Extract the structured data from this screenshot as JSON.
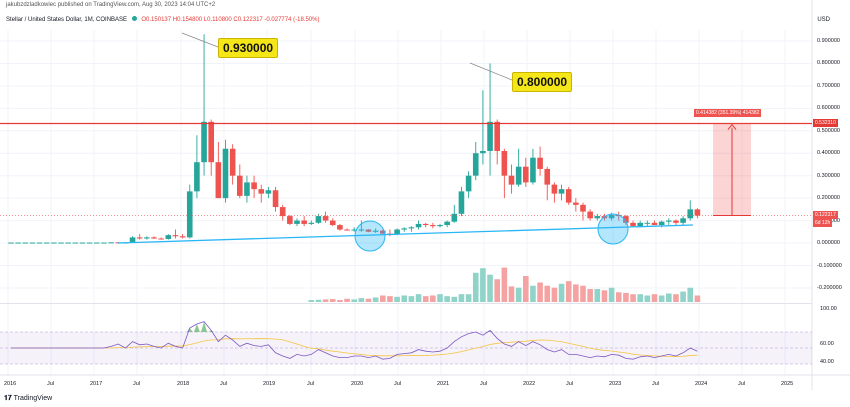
{
  "header": {
    "published": "jakubzdzladkowiec published on TradingView.com, Aug 30, 2023 14:04 UTC+2",
    "symbol": "Stellar / United States Dollar, 1M, COINBASE",
    "ohlc": {
      "o": "O0.150137",
      "h": "H0.154800",
      "l": "L0.110800",
      "c": "C0.122317",
      "chg": "-0.027774 (-18.50%)"
    },
    "currency": "USD"
  },
  "price_axis": [
    "0.900000",
    "0.800000",
    "0.700000",
    "0.600000",
    "0.500000",
    "0.400000",
    "0.300000",
    "0.200000",
    "0.100000",
    "0.000000",
    "-0.100000",
    "-0.200000"
  ],
  "rsi_axis": [
    "100.00",
    "60.00",
    "40.00"
  ],
  "x_axis": [
    "2016",
    "Jul",
    "2017",
    "Jul",
    "2018",
    "Jul",
    "2019",
    "Jul",
    "2020",
    "Jul",
    "2021",
    "Jul",
    "2022",
    "Jul",
    "2023",
    "Jul",
    "2024",
    "Jul",
    "2025"
  ],
  "callouts": {
    "high1": "0.930000",
    "high2": "0.800000"
  },
  "badges": {
    "measure": "0.414382 (351.39%) 414382",
    "resistance": "0.532310",
    "last_price": "0.122317",
    "countdown": "6d 12h"
  },
  "brand": "TradingView",
  "colors": {
    "up": "#26a69a",
    "down": "#ef5350",
    "resistance": "#e53935",
    "trendline": "#29b6f6",
    "callout_bg": "#f5e617",
    "rsi": "#7e57c2"
  },
  "chart_data": {
    "type": "candlestick",
    "resistance_level": 0.53231,
    "annotations": [
      "0.930000",
      "0.800000"
    ],
    "ylim": [
      -0.25,
      0.95
    ],
    "candles": [
      {
        "o": 0.002,
        "h": 0.002,
        "l": 0.002,
        "c": 0.002
      },
      {
        "o": 0.002,
        "h": 0.002,
        "l": 0.002,
        "c": 0.002
      },
      {
        "o": 0.002,
        "h": 0.002,
        "l": 0.002,
        "c": 0.002
      },
      {
        "o": 0.002,
        "h": 0.002,
        "l": 0.002,
        "c": 0.002
      },
      {
        "o": 0.002,
        "h": 0.002,
        "l": 0.002,
        "c": 0.002
      },
      {
        "o": 0.002,
        "h": 0.002,
        "l": 0.002,
        "c": 0.002
      },
      {
        "o": 0.002,
        "h": 0.002,
        "l": 0.002,
        "c": 0.002
      },
      {
        "o": 0.002,
        "h": 0.002,
        "l": 0.002,
        "c": 0.002
      },
      {
        "o": 0.002,
        "h": 0.002,
        "l": 0.002,
        "c": 0.002
      },
      {
        "o": 0.002,
        "h": 0.002,
        "l": 0.002,
        "c": 0.002
      },
      {
        "o": 0.002,
        "h": 0.002,
        "l": 0.002,
        "c": 0.002
      },
      {
        "o": 0.002,
        "h": 0.002,
        "l": 0.002,
        "c": 0.002
      },
      {
        "o": 0.002,
        "h": 0.002,
        "l": 0.002,
        "c": 0.002
      },
      {
        "o": 0.002,
        "h": 0.002,
        "l": 0.002,
        "c": 0.002
      },
      {
        "o": 0.002,
        "h": 0.003,
        "l": 0.002,
        "c": 0.003
      },
      {
        "o": 0.003,
        "h": 0.004,
        "l": 0.002,
        "c": 0.002
      },
      {
        "o": 0.002,
        "h": 0.003,
        "l": 0.002,
        "c": 0.002
      },
      {
        "o": 0.002,
        "h": 0.03,
        "l": 0.002,
        "c": 0.025
      },
      {
        "o": 0.025,
        "h": 0.04,
        "l": 0.015,
        "c": 0.02
      },
      {
        "o": 0.02,
        "h": 0.03,
        "l": 0.015,
        "c": 0.025
      },
      {
        "o": 0.025,
        "h": 0.03,
        "l": 0.018,
        "c": 0.02
      },
      {
        "o": 0.02,
        "h": 0.025,
        "l": 0.015,
        "c": 0.018
      },
      {
        "o": 0.018,
        "h": 0.04,
        "l": 0.015,
        "c": 0.035
      },
      {
        "o": 0.035,
        "h": 0.06,
        "l": 0.02,
        "c": 0.03
      },
      {
        "o": 0.03,
        "h": 0.04,
        "l": 0.02,
        "c": 0.025
      },
      {
        "o": 0.025,
        "h": 0.26,
        "l": 0.02,
        "c": 0.23
      },
      {
        "o": 0.23,
        "h": 0.48,
        "l": 0.2,
        "c": 0.36
      },
      {
        "o": 0.36,
        "h": 0.93,
        "l": 0.3,
        "c": 0.54
      },
      {
        "o": 0.54,
        "h": 0.55,
        "l": 0.3,
        "c": 0.36
      },
      {
        "o": 0.36,
        "h": 0.45,
        "l": 0.2,
        "c": 0.2
      },
      {
        "o": 0.2,
        "h": 0.46,
        "l": 0.18,
        "c": 0.42
      },
      {
        "o": 0.42,
        "h": 0.44,
        "l": 0.26,
        "c": 0.3
      },
      {
        "o": 0.3,
        "h": 0.35,
        "l": 0.2,
        "c": 0.21
      },
      {
        "o": 0.21,
        "h": 0.3,
        "l": 0.18,
        "c": 0.27
      },
      {
        "o": 0.27,
        "h": 0.3,
        "l": 0.2,
        "c": 0.24
      },
      {
        "o": 0.24,
        "h": 0.26,
        "l": 0.18,
        "c": 0.22
      },
      {
        "o": 0.22,
        "h": 0.25,
        "l": 0.2,
        "c": 0.235
      },
      {
        "o": 0.235,
        "h": 0.25,
        "l": 0.14,
        "c": 0.16
      },
      {
        "o": 0.16,
        "h": 0.17,
        "l": 0.1,
        "c": 0.12
      },
      {
        "o": 0.12,
        "h": 0.125,
        "l": 0.08,
        "c": 0.085
      },
      {
        "o": 0.085,
        "h": 0.11,
        "l": 0.075,
        "c": 0.1
      },
      {
        "o": 0.1,
        "h": 0.12,
        "l": 0.075,
        "c": 0.085
      },
      {
        "o": 0.085,
        "h": 0.1,
        "l": 0.08,
        "c": 0.09
      },
      {
        "o": 0.09,
        "h": 0.13,
        "l": 0.085,
        "c": 0.12
      },
      {
        "o": 0.12,
        "h": 0.14,
        "l": 0.09,
        "c": 0.1
      },
      {
        "o": 0.1,
        "h": 0.11,
        "l": 0.075,
        "c": 0.08
      },
      {
        "o": 0.08,
        "h": 0.085,
        "l": 0.055,
        "c": 0.06
      },
      {
        "o": 0.06,
        "h": 0.065,
        "l": 0.055,
        "c": 0.058
      },
      {
        "o": 0.058,
        "h": 0.07,
        "l": 0.05,
        "c": 0.06
      },
      {
        "o": 0.06,
        "h": 0.1,
        "l": 0.05,
        "c": 0.06
      },
      {
        "o": 0.06,
        "h": 0.062,
        "l": 0.048,
        "c": 0.05
      },
      {
        "o": 0.05,
        "h": 0.065,
        "l": 0.045,
        "c": 0.055
      },
      {
        "o": 0.055,
        "h": 0.06,
        "l": 0.04,
        "c": 0.042
      },
      {
        "o": 0.042,
        "h": 0.06,
        "l": 0.03,
        "c": 0.04
      },
      {
        "o": 0.04,
        "h": 0.065,
        "l": 0.035,
        "c": 0.06
      },
      {
        "o": 0.06,
        "h": 0.07,
        "l": 0.05,
        "c": 0.065
      },
      {
        "o": 0.065,
        "h": 0.075,
        "l": 0.05,
        "c": 0.07
      },
      {
        "o": 0.07,
        "h": 0.1,
        "l": 0.06,
        "c": 0.085
      },
      {
        "o": 0.085,
        "h": 0.09,
        "l": 0.07,
        "c": 0.08
      },
      {
        "o": 0.08,
        "h": 0.09,
        "l": 0.065,
        "c": 0.075
      },
      {
        "o": 0.075,
        "h": 0.085,
        "l": 0.07,
        "c": 0.08
      },
      {
        "o": 0.08,
        "h": 0.1,
        "l": 0.07,
        "c": 0.095
      },
      {
        "o": 0.095,
        "h": 0.17,
        "l": 0.09,
        "c": 0.13
      },
      {
        "o": 0.13,
        "h": 0.25,
        "l": 0.12,
        "c": 0.23
      },
      {
        "o": 0.23,
        "h": 0.32,
        "l": 0.2,
        "c": 0.3
      },
      {
        "o": 0.3,
        "h": 0.45,
        "l": 0.28,
        "c": 0.4
      },
      {
        "o": 0.4,
        "h": 0.68,
        "l": 0.35,
        "c": 0.41
      },
      {
        "o": 0.41,
        "h": 0.8,
        "l": 0.3,
        "c": 0.54
      },
      {
        "o": 0.54,
        "h": 0.55,
        "l": 0.35,
        "c": 0.41
      },
      {
        "o": 0.41,
        "h": 0.42,
        "l": 0.2,
        "c": 0.3
      },
      {
        "o": 0.3,
        "h": 0.35,
        "l": 0.22,
        "c": 0.26
      },
      {
        "o": 0.26,
        "h": 0.42,
        "l": 0.25,
        "c": 0.34
      },
      {
        "o": 0.34,
        "h": 0.38,
        "l": 0.25,
        "c": 0.27
      },
      {
        "o": 0.27,
        "h": 0.42,
        "l": 0.26,
        "c": 0.38
      },
      {
        "o": 0.38,
        "h": 0.43,
        "l": 0.3,
        "c": 0.33
      },
      {
        "o": 0.33,
        "h": 0.34,
        "l": 0.19,
        "c": 0.26
      },
      {
        "o": 0.26,
        "h": 0.27,
        "l": 0.18,
        "c": 0.22
      },
      {
        "o": 0.22,
        "h": 0.26,
        "l": 0.19,
        "c": 0.24
      },
      {
        "o": 0.24,
        "h": 0.25,
        "l": 0.17,
        "c": 0.18
      },
      {
        "o": 0.18,
        "h": 0.2,
        "l": 0.14,
        "c": 0.17
      },
      {
        "o": 0.17,
        "h": 0.18,
        "l": 0.1,
        "c": 0.14
      },
      {
        "o": 0.14,
        "h": 0.15,
        "l": 0.1,
        "c": 0.11
      },
      {
        "o": 0.11,
        "h": 0.13,
        "l": 0.1,
        "c": 0.12
      },
      {
        "o": 0.12,
        "h": 0.13,
        "l": 0.1,
        "c": 0.11
      },
      {
        "o": 0.11,
        "h": 0.135,
        "l": 0.1,
        "c": 0.125
      },
      {
        "o": 0.125,
        "h": 0.14,
        "l": 0.1,
        "c": 0.12
      },
      {
        "o": 0.12,
        "h": 0.125,
        "l": 0.08,
        "c": 0.09
      },
      {
        "o": 0.09,
        "h": 0.1,
        "l": 0.07,
        "c": 0.075
      },
      {
        "o": 0.075,
        "h": 0.1,
        "l": 0.07,
        "c": 0.09
      },
      {
        "o": 0.09,
        "h": 0.1,
        "l": 0.075,
        "c": 0.09
      },
      {
        "o": 0.09,
        "h": 0.1,
        "l": 0.08,
        "c": 0.08
      },
      {
        "o": 0.08,
        "h": 0.1,
        "l": 0.07,
        "c": 0.095
      },
      {
        "o": 0.095,
        "h": 0.11,
        "l": 0.08,
        "c": 0.1
      },
      {
        "o": 0.1,
        "h": 0.105,
        "l": 0.08,
        "c": 0.09
      },
      {
        "o": 0.09,
        "h": 0.12,
        "l": 0.08,
        "c": 0.11
      },
      {
        "o": 0.11,
        "h": 0.19,
        "l": 0.1,
        "c": 0.15
      },
      {
        "o": 0.15,
        "h": 0.155,
        "l": 0.11,
        "c": 0.122
      }
    ],
    "volume": [
      0,
      0,
      0,
      0,
      0,
      0,
      0,
      0,
      0,
      0,
      0,
      0,
      0,
      0,
      0,
      0,
      0,
      0,
      0,
      0,
      0,
      0,
      0,
      0,
      0,
      0,
      0,
      0,
      0,
      0,
      0,
      0,
      0,
      0,
      0,
      0,
      0,
      0,
      0,
      0,
      0,
      0,
      0.03,
      0.035,
      0.04,
      0.045,
      0.03,
      0.05,
      0.04,
      0.06,
      0.05,
      0.07,
      0.1,
      0.09,
      0.08,
      0.1,
      0.09,
      0.12,
      0.09,
      0.1,
      0.12,
      0.09,
      0.08,
      0.12,
      0.12,
      0.45,
      0.52,
      0.42,
      0.35,
      0.53,
      0.24,
      0.22,
      0.4,
      0.25,
      0.3,
      0.25,
      0.22,
      0.28,
      0.32,
      0.27,
      0.25,
      0.2,
      0.2,
      0.18,
      0.22,
      0.15,
      0.14,
      0.12,
      0.12,
      0.1,
      0.12,
      0.1,
      0.13,
      0.12,
      0.16,
      0.22,
      0.1
    ],
    "rsi": [
      50,
      50,
      50,
      50,
      50,
      50,
      50,
      50,
      50,
      50,
      50,
      50,
      50,
      50,
      52,
      55,
      50,
      58,
      54,
      55,
      52,
      50,
      56,
      52,
      50,
      75,
      80,
      83,
      72,
      58,
      66,
      60,
      52,
      56,
      53,
      52,
      54,
      44,
      40,
      37,
      42,
      40,
      42,
      48,
      44,
      40,
      38,
      38,
      40,
      40,
      38,
      40,
      36,
      37,
      42,
      43,
      44,
      48,
      46,
      45,
      46,
      50,
      58,
      64,
      68,
      70,
      66,
      72,
      62,
      55,
      52,
      58,
      53,
      58,
      54,
      48,
      45,
      48,
      42,
      42,
      40,
      38,
      40,
      39,
      42,
      41,
      37,
      36,
      39,
      40,
      38,
      40,
      42,
      40,
      44,
      50,
      46
    ]
  }
}
